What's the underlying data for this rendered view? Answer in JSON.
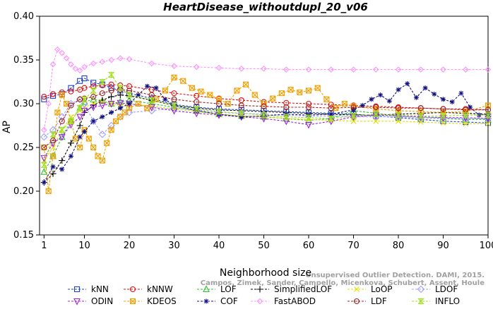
{
  "chart_data": {
    "type": "line",
    "title": "HeartDisease_withoutdupl_20_v06",
    "xlabel": "Neighborhood size",
    "ylabel": "AP",
    "xlim": [
      0,
      100
    ],
    "ylim": [
      0.15,
      0.4
    ],
    "xticks": [
      1,
      10,
      20,
      30,
      40,
      50,
      60,
      70,
      80,
      90,
      100
    ],
    "yticks": [
      0.15,
      0.2,
      0.25,
      0.3,
      0.35,
      0.4
    ],
    "grid": false,
    "legend_position": "bottom",
    "watermark": [
      "Unsupervised Outlier Detection. DAMI, 2015.",
      "Campos, Zimek, Sander, Campello, Micenkova, Schubert, Assent, Houle"
    ],
    "series": [
      {
        "name": "kNN",
        "color": "#1f3fd0",
        "marker": "square",
        "x": [
          1,
          3,
          5,
          7,
          9,
          10,
          12,
          14,
          16,
          18,
          20,
          25,
          30,
          35,
          40,
          45,
          50,
          55,
          60,
          65,
          70,
          75,
          80,
          85,
          90,
          95,
          100
        ],
        "y": [
          0.305,
          0.309,
          0.311,
          0.318,
          0.326,
          0.329,
          0.324,
          0.322,
          0.318,
          0.315,
          0.312,
          0.306,
          0.299,
          0.296,
          0.294,
          0.293,
          0.292,
          0.291,
          0.29,
          0.289,
          0.288,
          0.286,
          0.284,
          0.282,
          0.28,
          0.279,
          0.278
        ]
      },
      {
        "name": "kNNW",
        "color": "#e01010",
        "marker": "circle",
        "x": [
          1,
          3,
          5,
          7,
          9,
          10,
          12,
          14,
          16,
          18,
          20,
          25,
          30,
          35,
          40,
          45,
          50,
          55,
          60,
          65,
          70,
          75,
          80,
          85,
          90,
          95,
          100
        ],
        "y": [
          0.308,
          0.311,
          0.313,
          0.314,
          0.316,
          0.318,
          0.32,
          0.321,
          0.322,
          0.321,
          0.32,
          0.316,
          0.312,
          0.309,
          0.306,
          0.304,
          0.302,
          0.301,
          0.3,
          0.299,
          0.298,
          0.297,
          0.296,
          0.295,
          0.294,
          0.294,
          0.293
        ]
      },
      {
        "name": "LOF",
        "color": "#30c030",
        "marker": "triangle-up",
        "x": [
          1,
          3,
          5,
          7,
          9,
          10,
          12,
          14,
          16,
          18,
          20,
          25,
          30,
          35,
          40,
          45,
          50,
          55,
          60,
          65,
          70,
          75,
          80,
          85,
          90,
          95,
          100
        ],
        "y": [
          0.222,
          0.24,
          0.262,
          0.28,
          0.295,
          0.302,
          0.305,
          0.303,
          0.3,
          0.302,
          0.304,
          0.3,
          0.296,
          0.292,
          0.288,
          0.286,
          0.285,
          0.283,
          0.281,
          0.283,
          0.292,
          0.289,
          0.286,
          0.284,
          0.283,
          0.282,
          0.282
        ]
      },
      {
        "name": "SimplifiedLOF",
        "color": "#000000",
        "marker": "plus",
        "x": [
          1,
          3,
          5,
          7,
          9,
          10,
          12,
          14,
          16,
          18,
          20,
          25,
          30,
          35,
          40,
          45,
          50,
          55,
          60,
          65,
          70,
          75,
          80,
          85,
          90,
          95,
          100
        ],
        "y": [
          0.21,
          0.22,
          0.235,
          0.255,
          0.275,
          0.29,
          0.298,
          0.304,
          0.308,
          0.31,
          0.309,
          0.304,
          0.298,
          0.295,
          0.293,
          0.292,
          0.291,
          0.29,
          0.289,
          0.288,
          0.287,
          0.287,
          0.288,
          0.289,
          0.29,
          0.289,
          0.288
        ]
      },
      {
        "name": "LoOP",
        "color": "#e0e000",
        "marker": "x",
        "x": [
          1,
          3,
          5,
          7,
          9,
          10,
          12,
          14,
          16,
          18,
          20,
          25,
          30,
          35,
          40,
          45,
          50,
          55,
          60,
          65,
          70,
          75,
          80,
          85,
          90,
          95,
          100
        ],
        "y": [
          0.235,
          0.25,
          0.27,
          0.285,
          0.292,
          0.296,
          0.3,
          0.302,
          0.3,
          0.298,
          0.3,
          0.297,
          0.294,
          0.291,
          0.288,
          0.286,
          0.285,
          0.283,
          0.282,
          0.281,
          0.28,
          0.28,
          0.28,
          0.279,
          0.278,
          0.277,
          0.277
        ]
      },
      {
        "name": "LDOF",
        "color": "#a0a0ff",
        "marker": "diamond",
        "x": [
          1,
          3,
          5,
          7,
          9,
          10,
          12,
          14,
          16,
          18,
          20,
          25,
          30,
          35,
          40,
          45,
          50,
          55,
          60,
          65,
          70,
          75,
          80,
          85,
          90,
          95,
          100
        ],
        "y": [
          0.262,
          0.27,
          0.285,
          0.3,
          0.305,
          0.3,
          0.28,
          0.265,
          0.275,
          0.285,
          0.29,
          0.292,
          0.295,
          0.293,
          0.29,
          0.289,
          0.288,
          0.287,
          0.286,
          0.286,
          0.285,
          0.285,
          0.285,
          0.284,
          0.284,
          0.283,
          0.283
        ]
      },
      {
        "name": "ODIN",
        "color": "#a020e0",
        "marker": "triangle-down",
        "x": [
          1,
          3,
          5,
          7,
          9,
          10,
          12,
          14,
          16,
          18,
          20,
          25,
          30,
          35,
          40,
          45,
          50,
          55,
          60,
          65,
          70,
          75,
          80,
          85,
          90,
          95,
          100
        ],
        "y": [
          0.238,
          0.255,
          0.262,
          0.276,
          0.285,
          0.292,
          0.296,
          0.298,
          0.3,
          0.301,
          0.3,
          0.296,
          0.292,
          0.289,
          0.287,
          0.285,
          0.283,
          0.28,
          0.276,
          0.28,
          0.285,
          0.287,
          0.286,
          0.285,
          0.284,
          0.284,
          0.283
        ]
      },
      {
        "name": "KDEOS",
        "color": "#f0a000",
        "marker": "square-x",
        "x": [
          1,
          2,
          3,
          4,
          5,
          6,
          7,
          8,
          9,
          10,
          11,
          12,
          13,
          14,
          15,
          16,
          17,
          18,
          19,
          20,
          22,
          24,
          26,
          28,
          30,
          32,
          34,
          36,
          38,
          40,
          42,
          44,
          46,
          48,
          50,
          52,
          54,
          56,
          58,
          60,
          62,
          64,
          66,
          68,
          70,
          75,
          80,
          85,
          90,
          95,
          100
        ],
        "y": [
          0.25,
          0.2,
          0.24,
          0.29,
          0.31,
          0.3,
          0.28,
          0.26,
          0.25,
          0.27,
          0.26,
          0.25,
          0.24,
          0.235,
          0.255,
          0.27,
          0.28,
          0.285,
          0.29,
          0.295,
          0.3,
          0.295,
          0.305,
          0.315,
          0.33,
          0.326,
          0.318,
          0.314,
          0.31,
          0.305,
          0.3,
          0.315,
          0.322,
          0.31,
          0.3,
          0.306,
          0.312,
          0.316,
          0.313,
          0.315,
          0.318,
          0.305,
          0.295,
          0.3,
          0.297,
          0.294,
          0.292,
          0.291,
          0.29,
          0.291,
          0.298
        ]
      },
      {
        "name": "COF",
        "color": "#101080",
        "marker": "asterisk",
        "x": [
          1,
          3,
          5,
          7,
          9,
          10,
          12,
          14,
          16,
          18,
          20,
          22,
          24,
          26,
          28,
          30,
          35,
          40,
          45,
          50,
          55,
          60,
          65,
          70,
          72,
          74,
          76,
          78,
          80,
          82,
          84,
          86,
          88,
          90,
          92,
          94,
          96,
          98,
          100
        ],
        "y": [
          0.21,
          0.228,
          0.225,
          0.24,
          0.262,
          0.268,
          0.28,
          0.285,
          0.29,
          0.295,
          0.3,
          0.31,
          0.32,
          0.318,
          0.305,
          0.298,
          0.292,
          0.288,
          0.285,
          0.286,
          0.288,
          0.287,
          0.288,
          0.293,
          0.298,
          0.305,
          0.31,
          0.303,
          0.316,
          0.323,
          0.307,
          0.318,
          0.311,
          0.305,
          0.302,
          0.312,
          0.296,
          0.287,
          0.288
        ]
      },
      {
        "name": "FastABOD",
        "color": "#ff90ff",
        "marker": "diamond-small",
        "x": [
          1,
          2,
          3,
          4,
          5,
          6,
          7,
          8,
          9,
          10,
          12,
          14,
          16,
          18,
          20,
          25,
          30,
          35,
          40,
          45,
          50,
          55,
          60,
          65,
          70,
          75,
          80,
          85,
          90,
          95,
          100
        ],
        "y": [
          0.27,
          0.3,
          0.345,
          0.362,
          0.358,
          0.352,
          0.345,
          0.34,
          0.338,
          0.342,
          0.346,
          0.348,
          0.35,
          0.352,
          0.351,
          0.346,
          0.343,
          0.342,
          0.341,
          0.34,
          0.34,
          0.339,
          0.339,
          0.339,
          0.339,
          0.339,
          0.339,
          0.339,
          0.339,
          0.339,
          0.339
        ]
      },
      {
        "name": "LDF",
        "color": "#a02020",
        "marker": "circle-dot",
        "x": [
          1,
          3,
          5,
          7,
          9,
          10,
          12,
          14,
          16,
          18,
          20,
          25,
          30,
          35,
          40,
          45,
          50,
          55,
          60,
          65,
          70,
          75,
          80,
          85,
          90,
          95,
          100
        ],
        "y": [
          0.25,
          0.258,
          0.28,
          0.298,
          0.305,
          0.306,
          0.308,
          0.312,
          0.315,
          0.316,
          0.315,
          0.31,
          0.305,
          0.302,
          0.3,
          0.298,
          0.297,
          0.296,
          0.296,
          0.295,
          0.296,
          0.296,
          0.295,
          0.295,
          0.294,
          0.293,
          0.293
        ]
      },
      {
        "name": "INFLO",
        "color": "#a0e020",
        "marker": "hourglass",
        "x": [
          1,
          3,
          5,
          7,
          9,
          10,
          12,
          14,
          16,
          18,
          20,
          25,
          30,
          35,
          40,
          45,
          50,
          55,
          60,
          65,
          70,
          75,
          80,
          85,
          90,
          95,
          100
        ],
        "y": [
          0.23,
          0.265,
          0.27,
          0.28,
          0.295,
          0.305,
          0.315,
          0.325,
          0.333,
          0.318,
          0.31,
          0.304,
          0.298,
          0.294,
          0.291,
          0.289,
          0.287,
          0.285,
          0.284,
          0.283,
          0.286,
          0.288,
          0.287,
          0.286,
          0.286,
          0.287,
          0.287
        ]
      }
    ]
  }
}
